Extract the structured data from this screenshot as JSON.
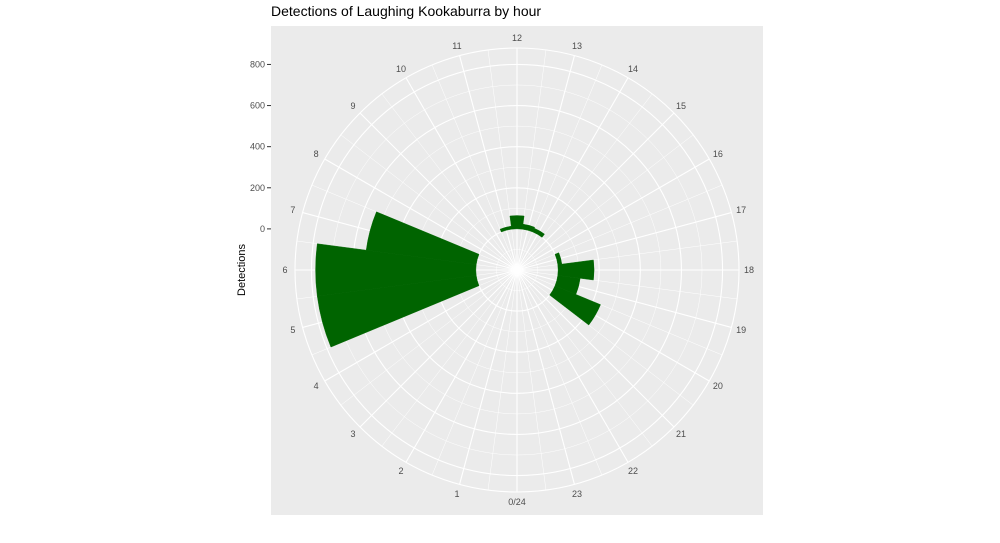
{
  "chart_data": {
    "type": "bar",
    "coord": "polar",
    "title": "Detections of Laughing Kookaburra by hour",
    "xlabel": "",
    "ylabel": "Detections",
    "categories": [
      "0/24",
      "1",
      "2",
      "3",
      "4",
      "5",
      "6",
      "7",
      "8",
      "9",
      "10",
      "11",
      "12",
      "13",
      "14",
      "15",
      "16",
      "17",
      "18",
      "19",
      "20",
      "21",
      "22",
      "23"
    ],
    "values": [
      0,
      0,
      0,
      0,
      0,
      780,
      780,
      540,
      0,
      0,
      0,
      15,
      65,
      25,
      20,
      0,
      0,
      20,
      175,
      110,
      240,
      0,
      0,
      0
    ],
    "ylim": [
      -200,
      880
    ],
    "y_ticks": [
      "0",
      "200",
      "400",
      "600",
      "800"
    ],
    "y_tick_values": [
      0,
      200,
      400,
      600,
      800
    ],
    "start_angle_hour": 18,
    "bar_color": "#006400",
    "panel_color": "#ebebeb",
    "grid_color": "#ffffff",
    "grid": true,
    "legend": "none"
  }
}
